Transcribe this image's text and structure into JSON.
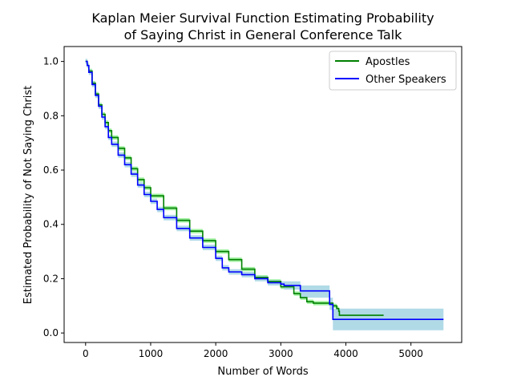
{
  "chart_data": {
    "type": "line",
    "title_line1": "Kaplan Meier Survival Function Estimating Probability",
    "title_line2": "of Saying Christ in General Conference Talk",
    "xlabel": "Number of Words",
    "ylabel": "Estimated Probability of Not Saying Christ",
    "xlim": [
      -330,
      5780
    ],
    "ylim": [
      -0.035,
      1.055
    ],
    "xticks": [
      0,
      1000,
      2000,
      3000,
      4000,
      5000
    ],
    "xtick_labels": [
      "0",
      "1000",
      "2000",
      "3000",
      "4000",
      "5000"
    ],
    "yticks": [
      0.0,
      0.2,
      0.4,
      0.6,
      0.8,
      1.0
    ],
    "ytick_labels": [
      "0.0",
      "0.2",
      "0.4",
      "0.6",
      "0.8",
      "1.0"
    ],
    "grid": false,
    "legend_position": "top-right",
    "series": [
      {
        "name": "Apostles",
        "color": "#008000",
        "band_color": "#90ee90",
        "points": [
          [
            0,
            1.0
          ],
          [
            25,
            0.985
          ],
          [
            50,
            0.965
          ],
          [
            100,
            0.92
          ],
          [
            150,
            0.88
          ],
          [
            200,
            0.84
          ],
          [
            250,
            0.805
          ],
          [
            300,
            0.775
          ],
          [
            350,
            0.745
          ],
          [
            400,
            0.72
          ],
          [
            500,
            0.68
          ],
          [
            600,
            0.645
          ],
          [
            700,
            0.605
          ],
          [
            800,
            0.565
          ],
          [
            900,
            0.535
          ],
          [
            1000,
            0.505
          ],
          [
            1200,
            0.46
          ],
          [
            1400,
            0.415
          ],
          [
            1600,
            0.375
          ],
          [
            1800,
            0.34
          ],
          [
            2000,
            0.3
          ],
          [
            2200,
            0.27
          ],
          [
            2400,
            0.235
          ],
          [
            2600,
            0.205
          ],
          [
            2800,
            0.19
          ],
          [
            3000,
            0.17
          ],
          [
            3200,
            0.145
          ],
          [
            3300,
            0.13
          ],
          [
            3400,
            0.115
          ],
          [
            3500,
            0.11
          ],
          [
            3700,
            0.11
          ],
          [
            3790,
            0.11
          ],
          [
            3800,
            0.1
          ],
          [
            3860,
            0.09
          ],
          [
            3890,
            0.08
          ],
          [
            3900,
            0.065
          ],
          [
            4580,
            0.065
          ]
        ],
        "band_halfwidth": 0.008
      },
      {
        "name": "Other Speakers",
        "color": "#0000ff",
        "band_color": "#add8e6",
        "points": [
          [
            0,
            1.0
          ],
          [
            25,
            0.985
          ],
          [
            50,
            0.96
          ],
          [
            100,
            0.915
          ],
          [
            150,
            0.875
          ],
          [
            200,
            0.835
          ],
          [
            250,
            0.795
          ],
          [
            300,
            0.76
          ],
          [
            350,
            0.72
          ],
          [
            400,
            0.695
          ],
          [
            500,
            0.655
          ],
          [
            600,
            0.62
          ],
          [
            700,
            0.585
          ],
          [
            800,
            0.545
          ],
          [
            900,
            0.51
          ],
          [
            1000,
            0.485
          ],
          [
            1100,
            0.455
          ],
          [
            1200,
            0.425
          ],
          [
            1400,
            0.385
          ],
          [
            1600,
            0.35
          ],
          [
            1800,
            0.315
          ],
          [
            2000,
            0.275
          ],
          [
            2100,
            0.24
          ],
          [
            2200,
            0.225
          ],
          [
            2400,
            0.215
          ],
          [
            2600,
            0.2
          ],
          [
            2800,
            0.185
          ],
          [
            3000,
            0.18
          ],
          [
            3050,
            0.175
          ],
          [
            3300,
            0.155
          ],
          [
            3500,
            0.155
          ],
          [
            3740,
            0.155
          ],
          [
            3750,
            0.105
          ],
          [
            3800,
            0.05
          ],
          [
            5500,
            0.05
          ]
        ],
        "band_halfwidth": 0.01,
        "band_steps": [
          [
            3050,
            0.16,
            0.19
          ],
          [
            3300,
            0.13,
            0.175
          ],
          [
            3750,
            0.085,
            0.13
          ],
          [
            3800,
            0.01,
            0.09
          ]
        ]
      }
    ]
  }
}
